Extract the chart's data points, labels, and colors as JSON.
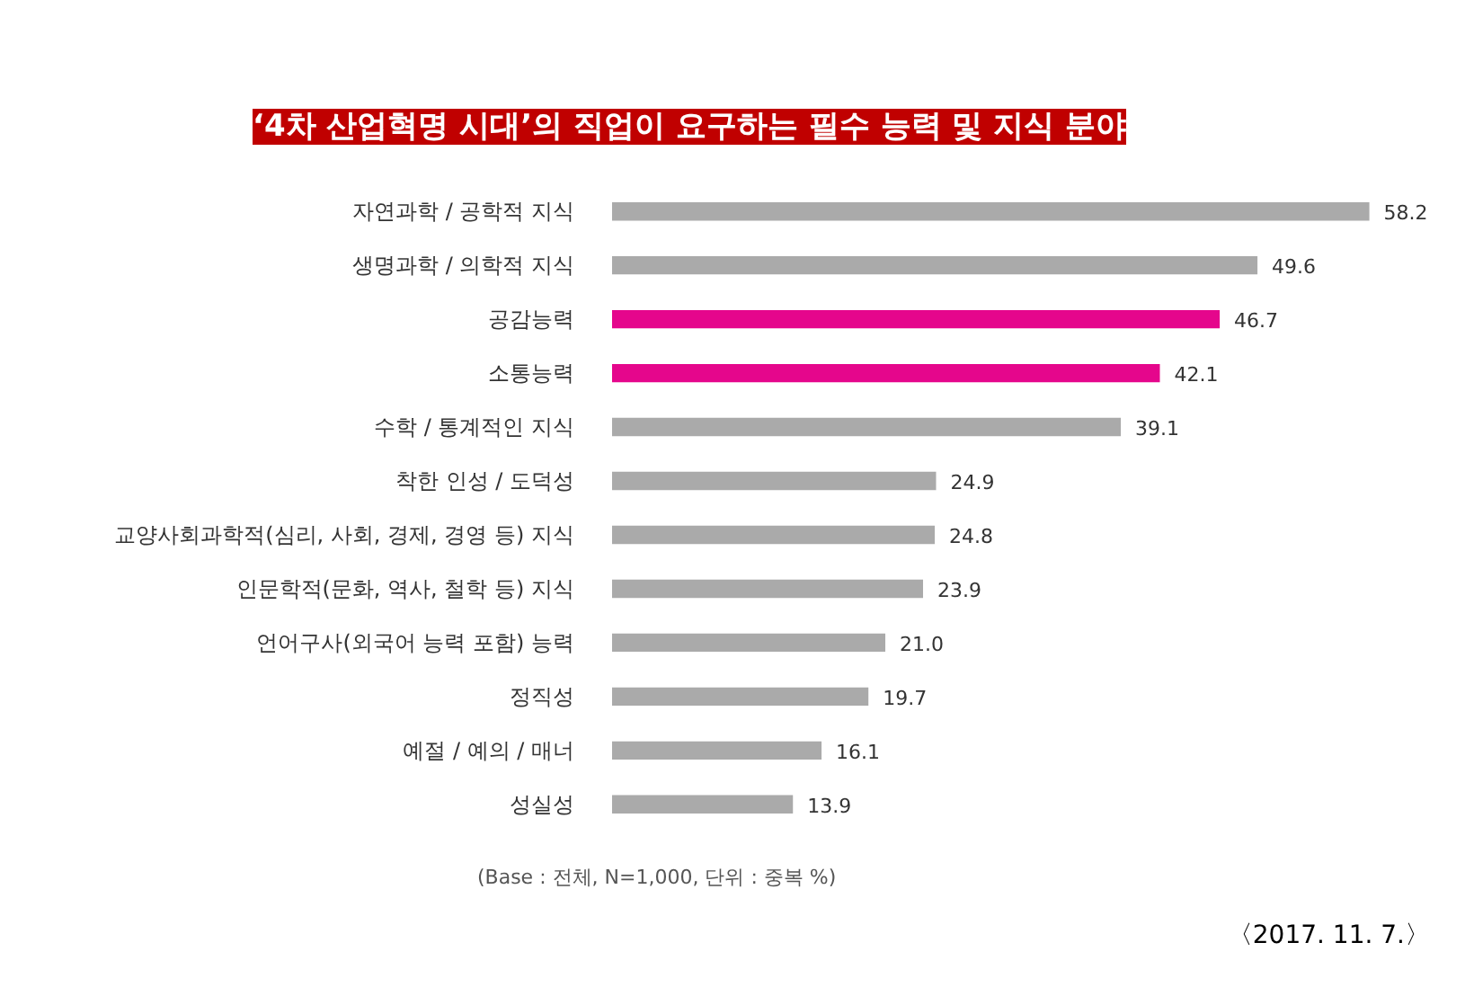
{
  "chart_data": {
    "type": "bar",
    "orientation": "horizontal",
    "title": "‘4차 산업혁명 시대’의 직업이 요구하는 필수 능력 및 지식 분야",
    "categories": [
      "자연과학 / 공학적 지식",
      "생명과학 / 의학적 지식",
      "공감능력",
      "소통능력",
      "수학 / 통계적인 지식",
      "착한 인성 / 도덕성",
      "교양사회과학적(심리, 사회, 경제, 경영 등) 지식",
      "인문학적(문화, 역사, 철학 등) 지식",
      "언어구사(외국어 능력 포함) 능력",
      "정직성",
      "예절 / 예의 / 매너",
      "성실성"
    ],
    "values": [
      58.2,
      49.6,
      46.7,
      42.1,
      39.1,
      24.9,
      24.8,
      23.9,
      21.0,
      19.7,
      16.1,
      13.9
    ],
    "colors": [
      "#aaaaaa",
      "#aaaaaa",
      "#e5068c",
      "#e5068c",
      "#aaaaaa",
      "#aaaaaa",
      "#aaaaaa",
      "#aaaaaa",
      "#aaaaaa",
      "#aaaaaa",
      "#aaaaaa",
      "#aaaaaa"
    ],
    "value_labels": [
      "58.2",
      "49.6",
      "46.7",
      "42.1",
      "39.1",
      "24.9",
      "24.8",
      "23.9",
      "21.0",
      "19.7",
      "16.1",
      "13.9"
    ],
    "tick_labels": "y",
    "grid": false,
    "annotations": [
      "(Base : 전체, N=1,000, 단위 :  중복 %)",
      "〈2017. 11. 7.〉"
    ]
  }
}
